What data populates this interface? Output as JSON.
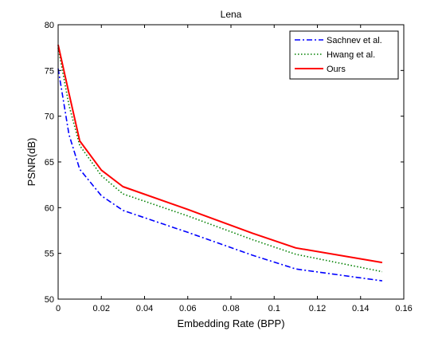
{
  "chart_data": {
    "type": "line",
    "title": "Lena",
    "xlabel": "Embedding Rate (BPP)",
    "ylabel": "PSNR(dB)",
    "xlim": [
      0,
      0.16
    ],
    "ylim": [
      50,
      80
    ],
    "xticks": [
      0,
      0.02,
      0.04,
      0.06,
      0.08,
      0.1,
      0.12,
      0.14,
      0.16
    ],
    "xtick_labels": [
      "0",
      "0.02",
      "0.04",
      "0.06",
      "0.08",
      "0.1",
      "0.12",
      "0.14",
      "0.16"
    ],
    "yticks": [
      50,
      55,
      60,
      65,
      70,
      75,
      80
    ],
    "ytick_labels": [
      "50",
      "55",
      "60",
      "65",
      "70",
      "75",
      "80"
    ],
    "grid": false,
    "legend_position": "top-right",
    "series": [
      {
        "name": "Sachnev et al.",
        "color": "#0000ff",
        "style": "dash-dot",
        "x": [
          0,
          0.005,
          0.01,
          0.02,
          0.03,
          0.06,
          0.09,
          0.11,
          0.15
        ],
        "y": [
          75.2,
          68,
          64.2,
          61.3,
          59.7,
          57.3,
          54.8,
          53.3,
          52
        ]
      },
      {
        "name": "Hwang et al.",
        "color": "#008000",
        "style": "dotted",
        "x": [
          0,
          0.005,
          0.01,
          0.02,
          0.03,
          0.06,
          0.09,
          0.11,
          0.15
        ],
        "y": [
          77.5,
          71.2,
          66.8,
          63.5,
          61.5,
          59.1,
          56.5,
          54.9,
          53
        ]
      },
      {
        "name": "Ours",
        "color": "#ff0000",
        "style": "solid",
        "x": [
          0,
          0.005,
          0.01,
          0.02,
          0.03,
          0.06,
          0.09,
          0.11,
          0.15
        ],
        "y": [
          77.8,
          72.5,
          67.3,
          64.1,
          62.3,
          59.8,
          57.2,
          55.6,
          54
        ]
      }
    ]
  }
}
